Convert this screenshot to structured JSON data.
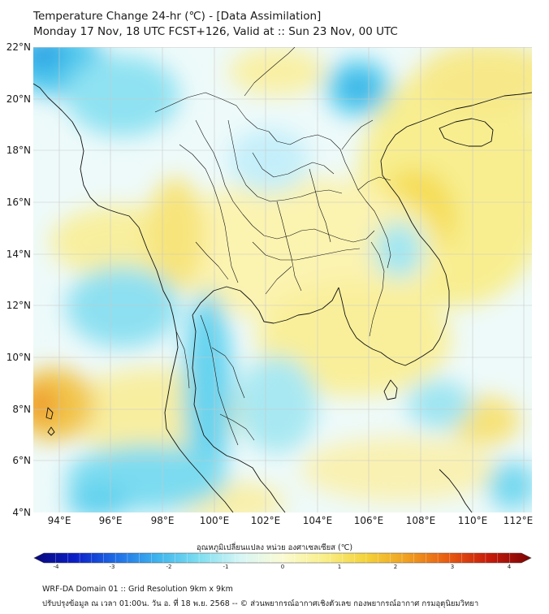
{
  "title": {
    "line1": "Temperature Change 24-hr (℃) - [Data Assimilation]",
    "line2": "Monday 17 Nov, 18 UTC FCST+126, Valid at :: Sun 23 Nov, 00 UTC"
  },
  "map": {
    "lat_labels": [
      "22°N",
      "20°N",
      "18°N",
      "16°N",
      "14°N",
      "12°N",
      "10°N",
      "8°N",
      "6°N",
      "4°N"
    ],
    "lon_labels": [
      "94°E",
      "96°E",
      "98°E",
      "100°E",
      "102°E",
      "104°E",
      "106°E",
      "108°E",
      "110°E",
      "112°E"
    ],
    "lat_range": [
      4,
      22
    ],
    "lon_range": [
      93,
      112.3
    ]
  },
  "colorbar": {
    "title": "อุณหภูมิเปลี่ยนแปลง หน่วย องศาเซลเซียส (℃)",
    "range": [
      -4,
      4
    ],
    "tick_labels": [
      "-4",
      "-3",
      "-2",
      "-1",
      "0",
      "1",
      "2",
      "3",
      "4"
    ],
    "colors": [
      "#08087a",
      "#0b1fc8",
      "#1f6fe6",
      "#3fb6ee",
      "#7fdff0",
      "#d8f6f6",
      "#fbfbd4",
      "#f9ef8a",
      "#f4d33a",
      "#f0a020",
      "#e85a10",
      "#c61a0a",
      "#7a0404"
    ]
  },
  "footer": {
    "line1": "WRF-DA Domain 01 :: Grid Resolution 9km x 9km",
    "line2": "ปรับปรุงข้อมูล ณ เวลา 01:00น. วัน อ. ที่ 18 พ.ย. 2568 -- © ส่วนพยากรณ์อากาศเชิงตัวเลข กองพยากรณ์อากาศ กรมอุตุนิยมวิทยา"
  }
}
